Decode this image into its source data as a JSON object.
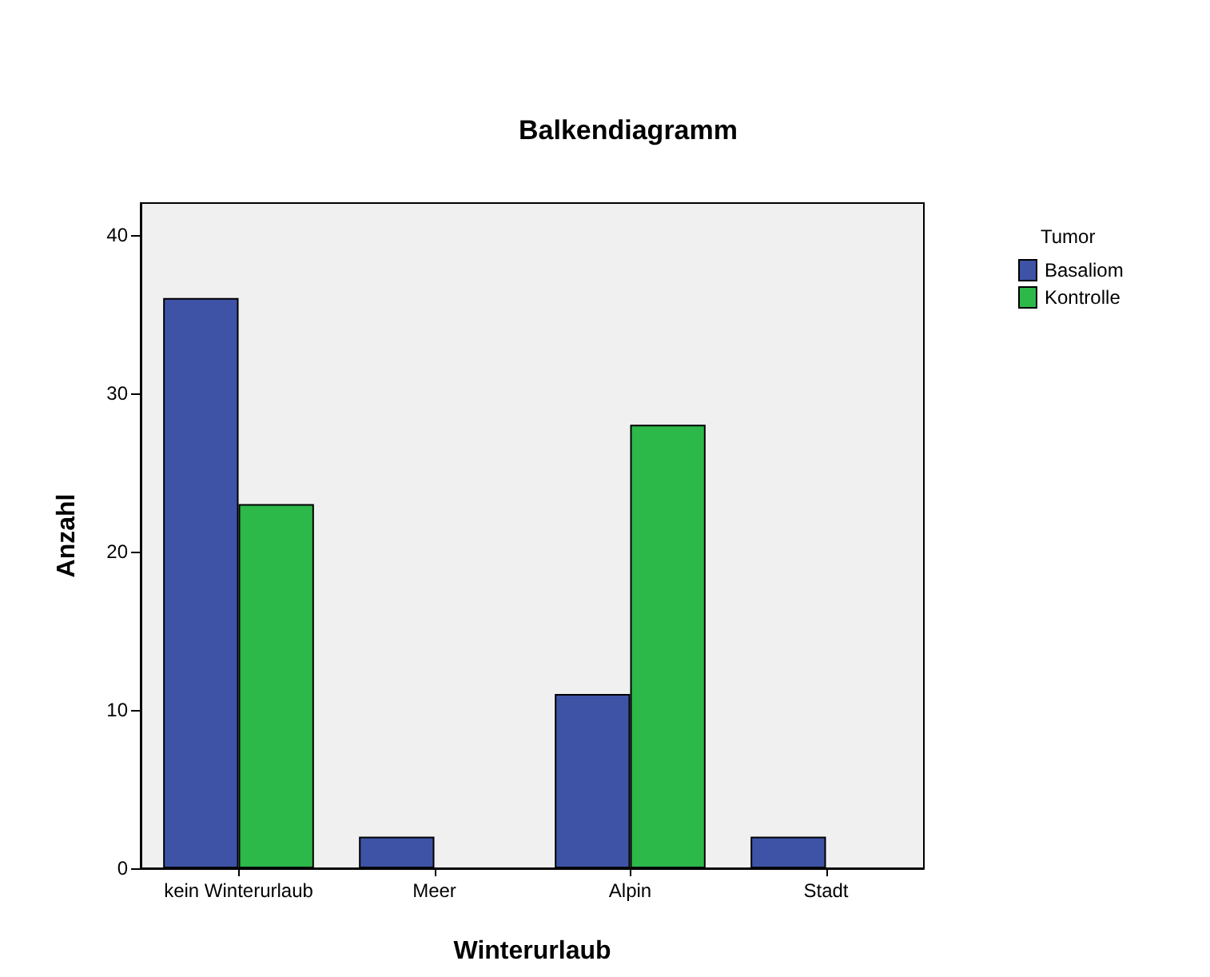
{
  "chart_data": {
    "type": "bar",
    "title": "Balkendiagramm",
    "xlabel": "Winterurlaub",
    "ylabel": "Anzahl",
    "legend_title": "Tumor",
    "categories": [
      "kein Winterurlaub",
      "Meer",
      "Alpin",
      "Stadt"
    ],
    "series": [
      {
        "name": "Basaliom",
        "color": "#3e53a6",
        "values": [
          36,
          2,
          11,
          2
        ]
      },
      {
        "name": "Kontrolle",
        "color": "#2db84a",
        "values": [
          23,
          null,
          28,
          null
        ]
      }
    ],
    "ylim": [
      0,
      42
    ],
    "yticks": [
      0,
      10,
      20,
      30,
      40
    ],
    "grid": false,
    "legend": "top right"
  }
}
